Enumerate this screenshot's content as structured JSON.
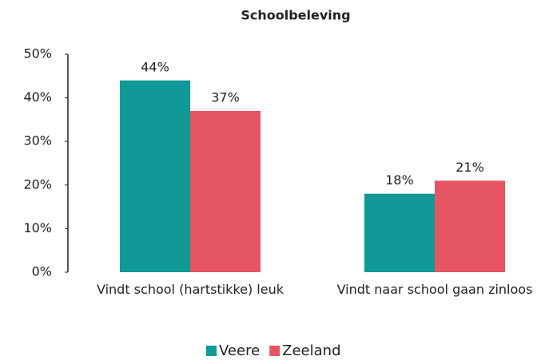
{
  "chart_data": {
    "type": "bar",
    "title": "Schoolbeleving",
    "categories": [
      "Vindt school (hartstikke) leuk",
      "Vindt naar school gaan zinloos"
    ],
    "series": [
      {
        "name": "Veere",
        "color": "#109996",
        "values": [
          44,
          18
        ],
        "value_labels": [
          "44%",
          "18%"
        ]
      },
      {
        "name": "Zeeland",
        "color": "#e65562",
        "values": [
          37,
          21
        ],
        "value_labels": [
          "37%",
          "21%"
        ]
      }
    ],
    "ylim": [
      0,
      50
    ],
    "yticks": [
      {
        "value": 0,
        "label": "0%"
      },
      {
        "value": 10,
        "label": "10%"
      },
      {
        "value": 20,
        "label": "20%"
      },
      {
        "value": 30,
        "label": "30%"
      },
      {
        "value": 40,
        "label": "40%"
      },
      {
        "value": 50,
        "label": "50%"
      }
    ],
    "grid": false,
    "legend": "bottom"
  }
}
